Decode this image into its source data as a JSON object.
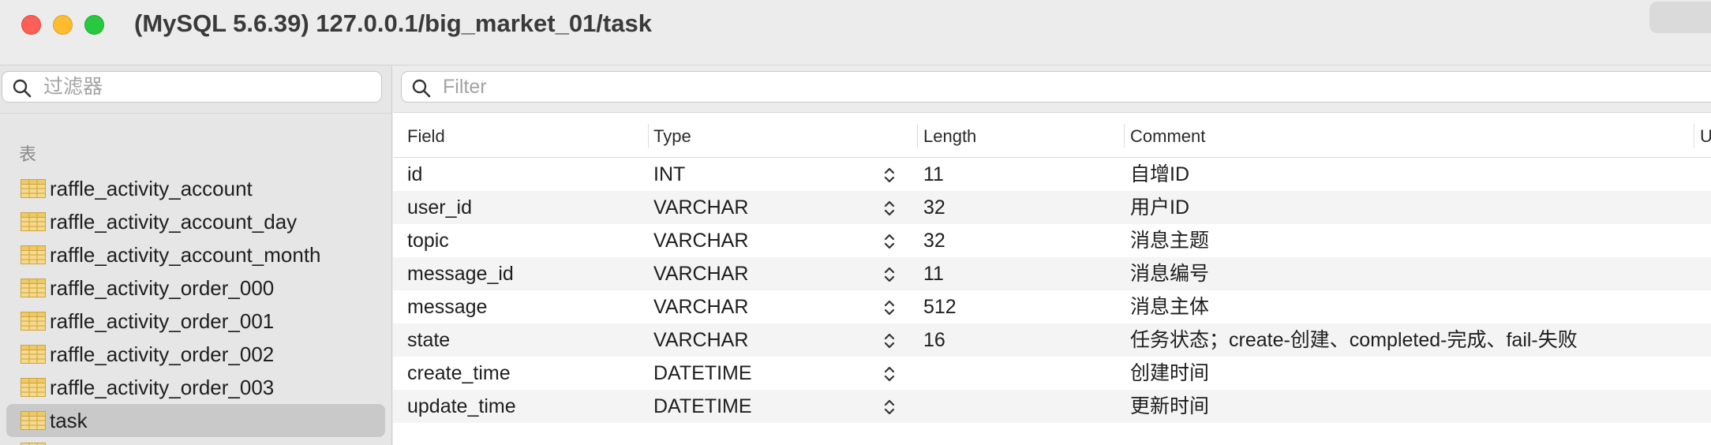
{
  "window": {
    "title": "(MySQL 5.6.39) 127.0.0.1/big_market_01/task"
  },
  "sidebar": {
    "filter_placeholder": "过滤器",
    "section_label": "表",
    "tables": [
      {
        "name": "raffle_activity_account",
        "selected": false
      },
      {
        "name": "raffle_activity_account_day",
        "selected": false
      },
      {
        "name": "raffle_activity_account_month",
        "selected": false
      },
      {
        "name": "raffle_activity_order_000",
        "selected": false
      },
      {
        "name": "raffle_activity_order_001",
        "selected": false
      },
      {
        "name": "raffle_activity_order_002",
        "selected": false
      },
      {
        "name": "raffle_activity_order_003",
        "selected": false
      },
      {
        "name": "task",
        "selected": true
      }
    ]
  },
  "main": {
    "filter_placeholder": "Filter",
    "columns": {
      "field": "Field",
      "type": "Type",
      "length": "Length",
      "comment": "Comment",
      "next": "U"
    },
    "rows": [
      {
        "field": "id",
        "type": "INT",
        "length": "11",
        "comment": "自增ID"
      },
      {
        "field": "user_id",
        "type": "VARCHAR",
        "length": "32",
        "comment": "用户ID"
      },
      {
        "field": "topic",
        "type": "VARCHAR",
        "length": "32",
        "comment": "消息主题"
      },
      {
        "field": "message_id",
        "type": "VARCHAR",
        "length": "11",
        "comment": "消息编号"
      },
      {
        "field": "message",
        "type": "VARCHAR",
        "length": "512",
        "comment": "消息主体"
      },
      {
        "field": "state",
        "type": "VARCHAR",
        "length": "16",
        "comment": "任务状态；create-创建、completed-完成、fail-失败"
      },
      {
        "field": "create_time",
        "type": "DATETIME",
        "length": "",
        "comment": "创建时间"
      },
      {
        "field": "update_time",
        "type": "DATETIME",
        "length": "",
        "comment": "更新时间"
      }
    ]
  },
  "icons": {
    "close": "close-button",
    "minimize": "minimize-button",
    "zoom": "zoom-button",
    "search": "search-icon",
    "table": "table-icon",
    "stepper": "up-down-chevron-icon"
  },
  "colors": {
    "close": "#fe5f57",
    "minimize": "#febc2e",
    "zoom": "#28c840",
    "selection": "#c9c9c9",
    "table_icon": "#f6d98a"
  }
}
